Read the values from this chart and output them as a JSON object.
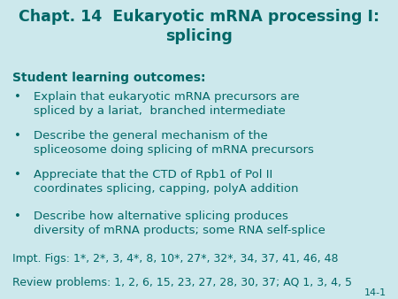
{
  "title": "Chapt. 14  Eukaryotic mRNA processing I:\nsplicing",
  "title_color": "#006666",
  "title_fontsize": 12.5,
  "background_color": "#cce8ec",
  "text_color": "#006666",
  "subtitle": "Student learning outcomes:",
  "subtitle_fontsize": 10.0,
  "bullet_items": [
    "Explain that eukaryotic mRNA precursors are\nspliced by a lariat,  branched intermediate",
    "Describe the general mechanism of the\nspliceosome doing splicing of mRNA precursors",
    "Appreciate that the CTD of Rpb1 of Pol II\ncoordinates splicing, capping, polyA addition",
    "Describe how alternative splicing produces\ndiversity of mRNA products; some RNA self-splice"
  ],
  "bullet_fontsize": 9.5,
  "footer1": "Impt. Figs: 1*, 2*, 3, 4*, 8, 10*, 27*, 32*, 34, 37, 41, 46, 48",
  "footer2": "Review problems: 1, 2, 6, 15, 23, 27, 28, 30, 37; AQ 1, 3, 4, 5",
  "footer_fontsize": 9.0,
  "page_number": "14-1",
  "page_number_fontsize": 8
}
